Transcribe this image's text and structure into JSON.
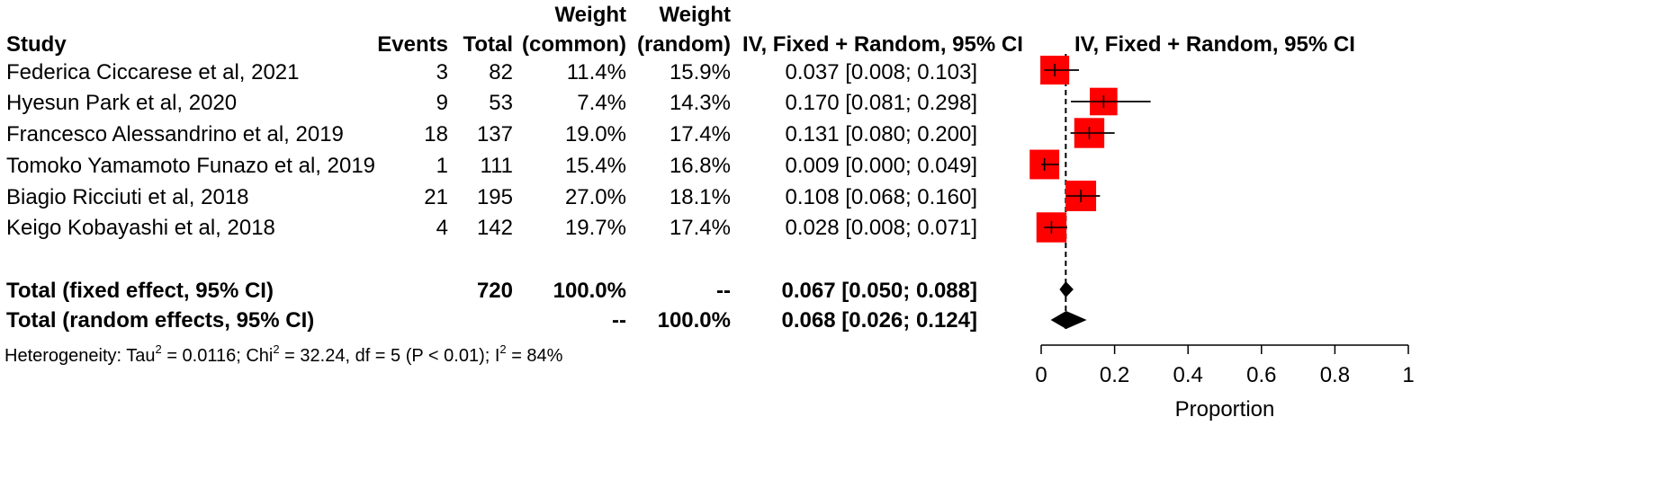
{
  "headers": {
    "study": "Study",
    "events": "Events",
    "total": "Total",
    "weight_common_1": "Weight",
    "weight_common_2": "(common)",
    "weight_random_1": "Weight",
    "weight_random_2": "(random)",
    "ci": "IV, Fixed + Random, 95% CI",
    "plot": "IV, Fixed + Random, 95% CI"
  },
  "studies": [
    {
      "name": "Federica Ciccarese et al, 2021",
      "events": "3",
      "total": "82",
      "w_common": "11.4%",
      "w_random": "15.9%",
      "ci": "0.037 [0.008; 0.103]",
      "est": 0.037,
      "lo": 0.008,
      "hi": 0.103,
      "weight": 15.9
    },
    {
      "name": "Hyesun Park et al, 2020",
      "events": "9",
      "total": "53",
      "w_common": "7.4%",
      "w_random": "14.3%",
      "ci": "0.170 [0.081; 0.298]",
      "est": 0.17,
      "lo": 0.081,
      "hi": 0.298,
      "weight": 14.3
    },
    {
      "name": "Francesco Alessandrino et al, 2019",
      "events": "18",
      "total": "137",
      "w_common": "19.0%",
      "w_random": "17.4%",
      "ci": "0.131 [0.080; 0.200]",
      "est": 0.131,
      "lo": 0.08,
      "hi": 0.2,
      "weight": 17.4
    },
    {
      "name": "Tomoko Yamamoto Funazo et al, 2019",
      "events": "1",
      "total": "111",
      "w_common": "15.4%",
      "w_random": "16.8%",
      "ci": "0.009 [0.000; 0.049]",
      "est": 0.009,
      "lo": 0.0,
      "hi": 0.049,
      "weight": 16.8
    },
    {
      "name": "Biagio Ricciuti et al, 2018",
      "events": "21",
      "total": "195",
      "w_common": "27.0%",
      "w_random": "18.1%",
      "ci": "0.108 [0.068; 0.160]",
      "est": 0.108,
      "lo": 0.068,
      "hi": 0.16,
      "weight": 18.1
    },
    {
      "name": "Keigo Kobayashi et al, 2018",
      "events": "4",
      "total": "142",
      "w_common": "19.7%",
      "w_random": "17.4%",
      "ci": "0.028 [0.008; 0.071]",
      "est": 0.028,
      "lo": 0.008,
      "hi": 0.071,
      "weight": 17.4
    }
  ],
  "totals": {
    "fixed": {
      "label": "Total (fixed effect, 95% CI)",
      "total": "720",
      "w_common": "100.0%",
      "w_random": "--",
      "ci": "0.067 [0.050; 0.088]",
      "est": 0.067,
      "lo": 0.05,
      "hi": 0.088
    },
    "random": {
      "label": "Total (random effects, 95% CI)",
      "total": "--",
      "w_common": "",
      "w_random": "100.0%",
      "ci": "0.068 [0.026; 0.124]",
      "est": 0.068,
      "lo": 0.026,
      "hi": 0.124
    }
  },
  "heterogeneity": {
    "prefix": "Heterogeneity: Tau",
    "tau_exp": "2",
    "tau_rest": " = 0.0116; Chi",
    "chi_exp": "2",
    "chi_rest": " = 32.24, df = 5 (P < 0.01); I",
    "i_exp": "2",
    "i_rest": " = 84%"
  },
  "chart_data": {
    "type": "forest",
    "xlabel": "Proportion",
    "xlim": [
      0,
      1
    ],
    "ticks": [
      0,
      0.2,
      0.4,
      0.6,
      0.8,
      1
    ],
    "tick_labels": [
      "0",
      "0.2",
      "0.4",
      "0.6",
      "0.8",
      "1"
    ],
    "reference_line": 0.067,
    "box_color": "#ff0000",
    "diamond_color": "#000000"
  }
}
